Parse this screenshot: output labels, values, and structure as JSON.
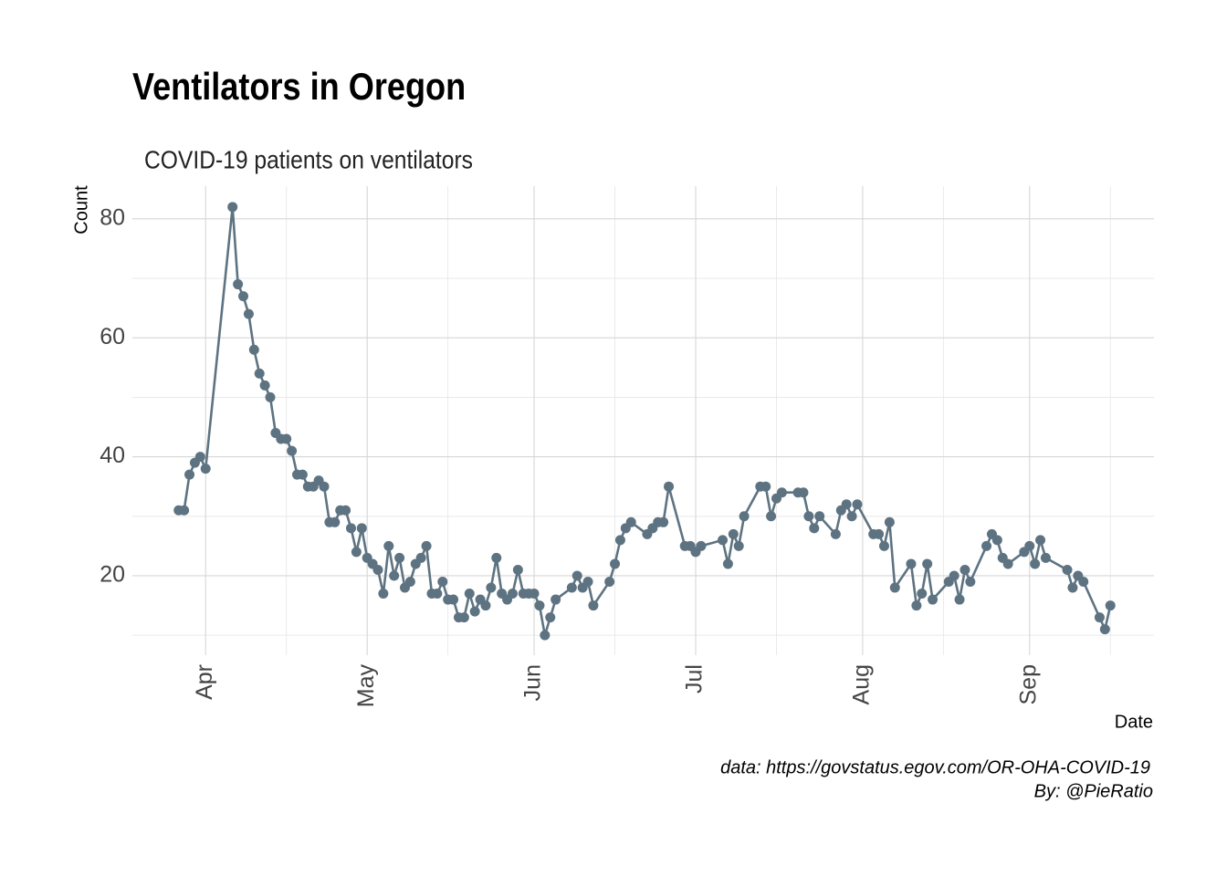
{
  "chart_data": {
    "type": "line",
    "title": "Ventilators in Oregon",
    "subtitle": "COVID-19 patients on ventilators",
    "x_label": "Date",
    "y_label": "Count",
    "caption": [
      "data: https://govstatus.egov.com/OR-OHA-COVID-19",
      "By: @PieRatio"
    ],
    "x": [
      -5,
      -4,
      -3,
      -2,
      -1,
      0,
      5,
      6,
      7,
      8,
      9,
      10,
      11,
      12,
      13,
      14,
      15,
      16,
      17,
      18,
      19,
      20,
      21,
      22,
      23,
      24,
      25,
      26,
      27,
      28,
      29,
      30,
      31,
      32,
      33,
      34,
      35,
      36,
      37,
      38,
      39,
      40,
      41,
      42,
      43,
      44,
      45,
      46,
      47,
      48,
      49,
      50,
      51,
      52,
      53,
      54,
      55,
      56,
      57,
      58,
      59,
      60,
      61,
      62,
      63,
      64,
      65,
      68,
      69,
      70,
      71,
      72,
      75,
      76,
      77,
      78,
      79,
      82,
      83,
      84,
      85,
      86,
      89,
      90,
      91,
      92,
      96,
      97,
      98,
      99,
      100,
      103,
      104,
      105,
      106,
      107,
      110,
      111,
      112,
      113,
      114,
      117,
      118,
      119,
      120,
      121,
      124,
      125,
      126,
      127,
      128,
      131,
      132,
      133,
      134,
      135,
      138,
      139,
      140,
      141,
      142,
      145,
      146,
      147,
      148,
      149,
      152,
      153,
      154,
      155,
      156,
      160,
      161,
      162,
      163,
      166,
      167,
      168
    ],
    "series": [
      {
        "name": "Count",
        "color": "#5e7381",
        "values": [
          31,
          31,
          37,
          39,
          40,
          38,
          82,
          69,
          67,
          64,
          58,
          54,
          52,
          50,
          44,
          43,
          43,
          41,
          37,
          37,
          35,
          35,
          36,
          35,
          29,
          29,
          31,
          31,
          28,
          24,
          28,
          23,
          22,
          21,
          17,
          25,
          20,
          23,
          18,
          19,
          22,
          23,
          25,
          17,
          17,
          19,
          16,
          16,
          13,
          13,
          17,
          14,
          16,
          15,
          18,
          23,
          17,
          16,
          17,
          21,
          17,
          17,
          17,
          15,
          10,
          13,
          16,
          18,
          20,
          18,
          19,
          15,
          19,
          22,
          26,
          28,
          29,
          27,
          28,
          29,
          29,
          35,
          25,
          25,
          24,
          25,
          26,
          22,
          27,
          25,
          30,
          35,
          35,
          30,
          33,
          34,
          34,
          34,
          30,
          28,
          30,
          27,
          31,
          32,
          30,
          32,
          27,
          27,
          25,
          29,
          18,
          22,
          15,
          17,
          22,
          16,
          19,
          20,
          16,
          21,
          19,
          25,
          27,
          26,
          23,
          22,
          24,
          25,
          22,
          26,
          23,
          21,
          18,
          20,
          19,
          13,
          11,
          15
        ]
      }
    ],
    "xlim": [
      -13.6,
      176.1
    ],
    "xticks": [
      {
        "value": 0,
        "label": "Apr"
      },
      {
        "value": 30,
        "label": "May"
      },
      {
        "value": 61,
        "label": "Jun"
      },
      {
        "value": 91,
        "label": "Jul"
      },
      {
        "value": 122,
        "label": "Aug"
      },
      {
        "value": 153,
        "label": "Sep"
      }
    ],
    "xminorticks": [
      15,
      45,
      76,
      106,
      137,
      168
    ],
    "ylim": [
      6.65,
      85.5
    ],
    "yticks": [
      20,
      40,
      60,
      80
    ],
    "yminorticks": [
      10,
      30,
      50,
      70
    ],
    "grid": true
  }
}
